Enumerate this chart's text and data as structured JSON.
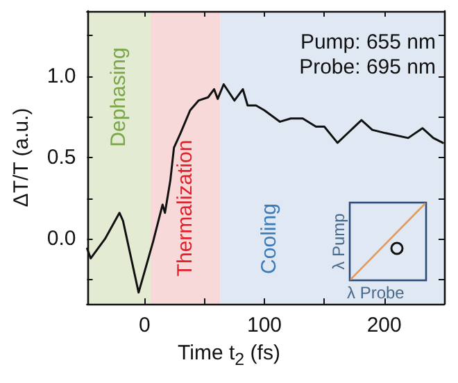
{
  "chart_data": {
    "type": "line",
    "xlabel": "Time t$_{2}$ (fs)",
    "ylabel": "ΔT/T (a.u.)",
    "x": [
      -48,
      -45,
      -33,
      -21,
      -18,
      -5,
      7,
      15,
      17,
      21.5,
      24.5,
      30,
      38,
      45,
      53,
      58,
      61,
      66,
      75,
      82,
      86,
      93,
      100,
      113,
      122,
      132,
      143,
      150,
      161,
      171,
      181,
      190,
      201,
      220,
      232,
      241,
      249
    ],
    "series": [
      {
        "color": "#111111",
        "values": [
          -0.06,
          -0.12,
          0.0,
          0.16,
          0.11,
          -0.33,
          -0.02,
          0.21,
          0.16,
          0.36,
          0.56,
          0.65,
          0.79,
          0.85,
          0.87,
          0.92,
          0.86,
          0.95,
          0.85,
          0.92,
          0.82,
          0.82,
          0.79,
          0.72,
          0.74,
          0.74,
          0.69,
          0.69,
          0.59,
          0.66,
          0.73,
          0.67,
          0.65,
          0.62,
          0.68,
          0.62,
          0.59
        ]
      }
    ],
    "xlim": [
      -48,
      250
    ],
    "ylim": [
      -0.4,
      1.4
    ],
    "xticks": [
      0,
      {
        "value": 50,
        "label": null
      },
      100,
      {
        "value": 150,
        "label": null
      },
      200
    ],
    "yticks": [
      {
        "value": -0.25,
        "label": null
      },
      {
        "value": 0,
        "label": "0.0"
      },
      {
        "value": 0.25,
        "label": null
      },
      0.5,
      {
        "value": 0.75,
        "label": null
      },
      {
        "value": 1,
        "label": "1.0"
      },
      {
        "value": 1.25,
        "label": null
      }
    ],
    "bands": [
      {
        "axis": "x",
        "from": -48,
        "to": 5,
        "label": "Dephasing",
        "color": "#e3ecd3"
      },
      {
        "axis": "x",
        "from": 5,
        "to": 63,
        "label": "Thermalization",
        "color": "#f8d9d9"
      },
      {
        "axis": "x",
        "from": 63,
        "to": 250,
        "label": "Cooling",
        "color": "#dfe8f3"
      }
    ],
    "annotations": [
      "Pump: 655 nm\nProbe: 695 nm",
      "λ Pump",
      "λ Probe"
    ],
    "grid": false,
    "marker": "none",
    "line_style": "solid"
  }
}
